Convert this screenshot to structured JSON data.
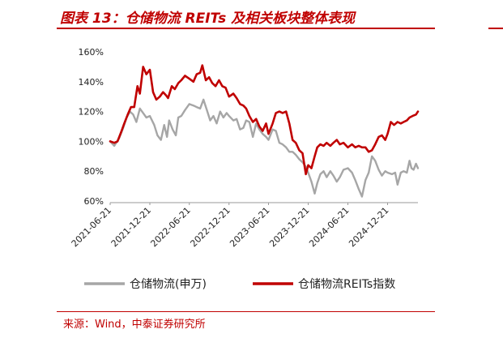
{
  "title": "图表 13：仓储物流 REITs 及相关板块整体表现",
  "source": "来源：Wind，中泰证券研究所",
  "colors": {
    "brand": "#c00000",
    "series_gray": "#a6a6a6",
    "series_red": "#c00000"
  },
  "chart_data": {
    "type": "line",
    "title": "图表 13：仓储物流 REITs 及相关板块整体表现",
    "xlabel": "",
    "ylabel": "",
    "yticks": [
      "60%",
      "80%",
      "100%",
      "120%",
      "140%",
      "160%"
    ],
    "ylim": [
      60,
      160
    ],
    "xticks": [
      "2021-06-21",
      "2021-12-21",
      "2022-06-21",
      "2022-12-21",
      "2023-06-21",
      "2023-12-21",
      "2024-06-21",
      "2024-12-21"
    ],
    "grid": false,
    "legend_position": "bottom",
    "series": [
      {
        "name": "仓储物流(申万)",
        "color": "#a6a6a6",
        "points": [
          [
            "2021-06-21",
            100
          ],
          [
            "2021-07-10",
            97
          ],
          [
            "2021-08-01",
            102
          ],
          [
            "2021-08-20",
            109
          ],
          [
            "2021-09-05",
            116
          ],
          [
            "2021-09-20",
            120
          ],
          [
            "2021-10-05",
            118
          ],
          [
            "2021-10-20",
            113
          ],
          [
            "2021-11-05",
            122
          ],
          [
            "2021-11-20",
            119
          ],
          [
            "2021-12-05",
            116
          ],
          [
            "2021-12-21",
            117
          ],
          [
            "2022-01-10",
            111
          ],
          [
            "2022-01-25",
            104
          ],
          [
            "2022-02-10",
            101
          ],
          [
            "2022-02-25",
            111
          ],
          [
            "2022-03-10",
            103
          ],
          [
            "2022-03-20",
            114
          ],
          [
            "2022-04-05",
            108
          ],
          [
            "2022-04-20",
            104
          ],
          [
            "2022-05-01",
            116
          ],
          [
            "2022-05-15",
            117
          ],
          [
            "2022-06-01",
            121
          ],
          [
            "2022-06-21",
            125
          ],
          [
            "2022-07-10",
            124
          ],
          [
            "2022-07-25",
            123
          ],
          [
            "2022-08-10",
            122
          ],
          [
            "2022-08-25",
            128
          ],
          [
            "2022-09-10",
            121
          ],
          [
            "2022-09-25",
            114
          ],
          [
            "2022-10-10",
            117
          ],
          [
            "2022-10-25",
            112
          ],
          [
            "2022-11-10",
            120
          ],
          [
            "2022-11-25",
            116
          ],
          [
            "2022-12-10",
            119
          ],
          [
            "2022-12-21",
            117
          ],
          [
            "2023-01-10",
            114
          ],
          [
            "2023-01-25",
            115
          ],
          [
            "2023-02-10",
            108
          ],
          [
            "2023-02-25",
            109
          ],
          [
            "2023-03-10",
            114
          ],
          [
            "2023-03-25",
            113
          ],
          [
            "2023-04-10",
            103
          ],
          [
            "2023-04-25",
            112
          ],
          [
            "2023-05-10",
            108
          ],
          [
            "2023-05-25",
            105
          ],
          [
            "2023-06-10",
            103
          ],
          [
            "2023-06-21",
            101
          ],
          [
            "2023-07-10",
            108
          ],
          [
            "2023-07-25",
            107
          ],
          [
            "2023-08-10",
            99
          ],
          [
            "2023-08-25",
            98
          ],
          [
            "2023-09-10",
            96
          ],
          [
            "2023-09-25",
            93
          ],
          [
            "2023-10-10",
            93
          ],
          [
            "2023-10-25",
            91
          ],
          [
            "2023-11-10",
            88
          ],
          [
            "2023-11-25",
            86
          ],
          [
            "2023-12-10",
            83
          ],
          [
            "2023-12-21",
            79
          ],
          [
            "2024-01-05",
            73
          ],
          [
            "2024-01-20",
            65
          ],
          [
            "2024-02-01",
            72
          ],
          [
            "2024-02-15",
            78
          ],
          [
            "2024-03-01",
            80
          ],
          [
            "2024-03-15",
            76
          ],
          [
            "2024-04-01",
            80
          ],
          [
            "2024-04-15",
            77
          ],
          [
            "2024-05-01",
            73
          ],
          [
            "2024-05-15",
            76
          ],
          [
            "2024-06-01",
            81
          ],
          [
            "2024-06-21",
            82
          ],
          [
            "2024-07-10",
            79
          ],
          [
            "2024-07-25",
            74
          ],
          [
            "2024-08-10",
            68
          ],
          [
            "2024-08-25",
            63
          ],
          [
            "2024-09-10",
            74
          ],
          [
            "2024-09-25",
            79
          ],
          [
            "2024-10-10",
            90
          ],
          [
            "2024-10-25",
            87
          ],
          [
            "2024-11-10",
            81
          ],
          [
            "2024-11-25",
            77
          ],
          [
            "2024-12-10",
            80
          ],
          [
            "2024-12-21",
            79
          ],
          [
            "2025-01-10",
            78
          ],
          [
            "2025-01-25",
            79
          ],
          [
            "2025-02-05",
            71
          ],
          [
            "2025-02-20",
            79
          ],
          [
            "2025-03-05",
            80
          ],
          [
            "2025-03-20",
            79
          ],
          [
            "2025-04-01",
            87
          ],
          [
            "2025-04-10",
            82
          ],
          [
            "2025-04-20",
            81
          ],
          [
            "2025-05-01",
            85
          ],
          [
            "2025-05-10",
            82
          ]
        ]
      },
      {
        "name": "仓储物流REITs指数",
        "color": "#c00000",
        "points": [
          [
            "2021-06-21",
            100
          ],
          [
            "2021-07-10",
            99
          ],
          [
            "2021-07-25",
            100
          ],
          [
            "2021-08-10",
            106
          ],
          [
            "2021-08-25",
            112
          ],
          [
            "2021-09-10",
            118
          ],
          [
            "2021-09-25",
            123
          ],
          [
            "2021-10-10",
            123
          ],
          [
            "2021-10-25",
            137
          ],
          [
            "2021-11-05",
            132
          ],
          [
            "2021-11-20",
            150
          ],
          [
            "2021-12-05",
            145
          ],
          [
            "2021-12-21",
            148
          ],
          [
            "2022-01-05",
            133
          ],
          [
            "2022-01-20",
            128
          ],
          [
            "2022-02-05",
            130
          ],
          [
            "2022-02-20",
            133
          ],
          [
            "2022-03-05",
            131
          ],
          [
            "2022-03-15",
            129
          ],
          [
            "2022-04-01",
            137
          ],
          [
            "2022-04-15",
            135
          ],
          [
            "2022-05-01",
            139
          ],
          [
            "2022-05-15",
            141
          ],
          [
            "2022-06-01",
            144
          ],
          [
            "2022-06-21",
            142
          ],
          [
            "2022-07-10",
            140
          ],
          [
            "2022-07-25",
            145
          ],
          [
            "2022-08-10",
            146
          ],
          [
            "2022-08-20",
            151
          ],
          [
            "2022-09-05",
            141
          ],
          [
            "2022-09-20",
            143
          ],
          [
            "2022-10-05",
            139
          ],
          [
            "2022-10-20",
            137
          ],
          [
            "2022-11-05",
            141
          ],
          [
            "2022-11-20",
            137
          ],
          [
            "2022-12-05",
            136
          ],
          [
            "2022-12-21",
            130
          ],
          [
            "2023-01-10",
            132
          ],
          [
            "2023-01-25",
            129
          ],
          [
            "2023-02-10",
            125
          ],
          [
            "2023-02-25",
            124
          ],
          [
            "2023-03-10",
            122
          ],
          [
            "2023-03-25",
            117
          ],
          [
            "2023-04-10",
            113
          ],
          [
            "2023-04-25",
            115
          ],
          [
            "2023-05-10",
            110
          ],
          [
            "2023-05-25",
            107
          ],
          [
            "2023-06-10",
            112
          ],
          [
            "2023-06-21",
            105
          ],
          [
            "2023-07-10",
            112
          ],
          [
            "2023-07-25",
            119
          ],
          [
            "2023-08-10",
            120
          ],
          [
            "2023-08-25",
            119
          ],
          [
            "2023-09-10",
            120
          ],
          [
            "2023-09-25",
            112
          ],
          [
            "2023-10-10",
            101
          ],
          [
            "2023-10-25",
            99
          ],
          [
            "2023-11-10",
            94
          ],
          [
            "2023-11-25",
            92
          ],
          [
            "2023-12-10",
            78
          ],
          [
            "2023-12-21",
            84
          ],
          [
            "2024-01-05",
            82
          ],
          [
            "2024-01-20",
            90
          ],
          [
            "2024-02-01",
            96
          ],
          [
            "2024-02-15",
            98
          ],
          [
            "2024-03-01",
            97
          ],
          [
            "2024-03-15",
            99
          ],
          [
            "2024-04-01",
            97
          ],
          [
            "2024-04-15",
            99
          ],
          [
            "2024-05-01",
            101
          ],
          [
            "2024-05-15",
            98
          ],
          [
            "2024-06-01",
            99
          ],
          [
            "2024-06-21",
            96
          ],
          [
            "2024-07-10",
            98
          ],
          [
            "2024-07-25",
            96
          ],
          [
            "2024-08-10",
            97
          ],
          [
            "2024-08-25",
            96
          ],
          [
            "2024-09-10",
            96
          ],
          [
            "2024-09-25",
            93
          ],
          [
            "2024-10-10",
            94
          ],
          [
            "2024-10-25",
            98
          ],
          [
            "2024-11-10",
            103
          ],
          [
            "2024-11-25",
            104
          ],
          [
            "2024-12-10",
            101
          ],
          [
            "2024-12-21",
            105
          ],
          [
            "2025-01-05",
            113
          ],
          [
            "2025-01-20",
            111
          ],
          [
            "2025-02-05",
            113
          ],
          [
            "2025-02-20",
            112
          ],
          [
            "2025-03-05",
            113
          ],
          [
            "2025-03-20",
            114
          ],
          [
            "2025-04-01",
            116
          ],
          [
            "2025-04-15",
            117
          ],
          [
            "2025-05-01",
            118
          ],
          [
            "2025-05-10",
            120
          ]
        ]
      }
    ]
  }
}
